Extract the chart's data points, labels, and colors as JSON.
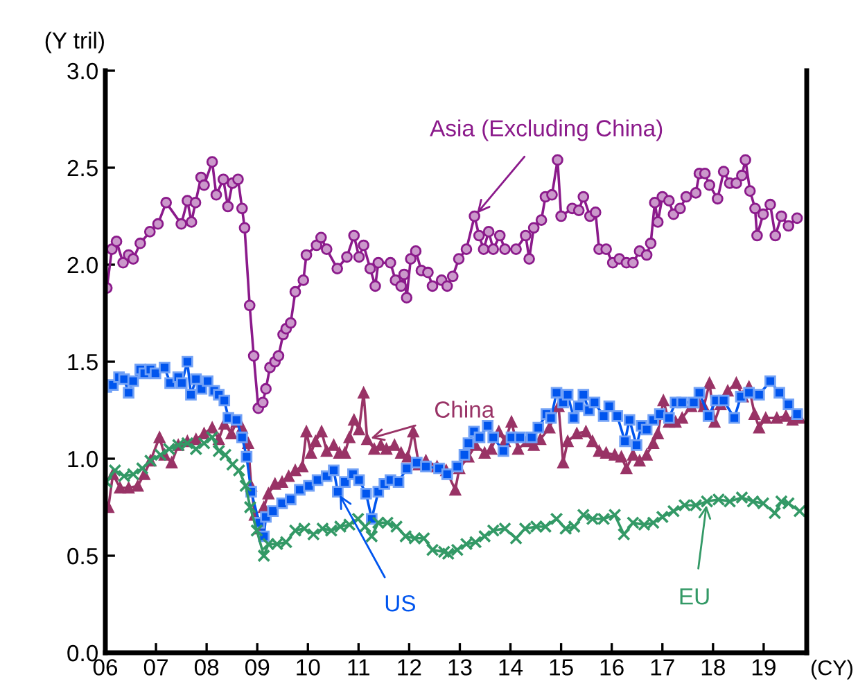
{
  "chart_data": {
    "type": "line",
    "ylabel": "(Y tril)",
    "xlabel": "(CY)",
    "xlim": [
      2006,
      2019.85
    ],
    "ylim": [
      0,
      3
    ],
    "xticks": [
      {
        "value": 2006,
        "label": "06"
      },
      {
        "value": 2007,
        "label": "07"
      },
      {
        "value": 2008,
        "label": "08"
      },
      {
        "value": 2009,
        "label": "09"
      },
      {
        "value": 2010,
        "label": "10"
      },
      {
        "value": 2011,
        "label": "11"
      },
      {
        "value": 2012,
        "label": "12"
      },
      {
        "value": 2013,
        "label": "13"
      },
      {
        "value": 2014,
        "label": "14"
      },
      {
        "value": 2015,
        "label": "15"
      },
      {
        "value": 2016,
        "label": "16"
      },
      {
        "value": 2017,
        "label": "17"
      },
      {
        "value": 2018,
        "label": "18"
      },
      {
        "value": 2019,
        "label": "19"
      }
    ],
    "yticks": [
      {
        "value": 0,
        "label": "0.0"
      },
      {
        "value": 0.5,
        "label": "0.5"
      },
      {
        "value": 1,
        "label": "1.0"
      },
      {
        "value": 1.5,
        "label": "1.5"
      },
      {
        "value": 2,
        "label": "2.0"
      },
      {
        "value": 2.5,
        "label": "2.5"
      },
      {
        "value": 3,
        "label": "3.0"
      }
    ],
    "grid": false,
    "legend": false,
    "series": [
      {
        "name": "Asia (Excluding China)",
        "color": "#8b1a8b",
        "marker": "circle",
        "x": [
          2006.03,
          2006.13,
          2006.22,
          2006.35,
          2006.46,
          2006.55,
          2006.69,
          2006.88,
          2007.04,
          2007.2,
          2007.5,
          2007.62,
          2007.7,
          2007.78,
          2007.89,
          2007.95,
          2008.11,
          2008.19,
          2008.33,
          2008.42,
          2008.51,
          2008.62,
          2008.7,
          2008.75,
          2008.85,
          2008.93,
          2009.02,
          2009.11,
          2009.17,
          2009.25,
          2009.35,
          2009.42,
          2009.51,
          2009.57,
          2009.66,
          2009.75,
          2009.91,
          2009.97,
          2010.17,
          2010.26,
          2010.37,
          2010.58,
          2010.77,
          2010.91,
          2011.01,
          2011.1,
          2011.23,
          2011.33,
          2011.39,
          2011.63,
          2011.73,
          2011.84,
          2011.9,
          2011.95,
          2012.03,
          2012.13,
          2012.24,
          2012.37,
          2012.46,
          2012.64,
          2012.75,
          2012.86,
          2012.98,
          2013.13,
          2013.29,
          2013.38,
          2013.47,
          2013.57,
          2013.66,
          2013.79,
          2013.89,
          2014.11,
          2014.3,
          2014.37,
          2014.46,
          2014.61,
          2014.69,
          2014.82,
          2014.93,
          2015.0,
          2015.22,
          2015.35,
          2015.44,
          2015.57,
          2015.68,
          2015.75,
          2015.89,
          2016.02,
          2016.15,
          2016.29,
          2016.42,
          2016.55,
          2016.69,
          2016.77,
          2016.85,
          2016.91,
          2017.0,
          2017.13,
          2017.22,
          2017.35,
          2017.47,
          2017.66,
          2017.73,
          2017.84,
          2017.93,
          2018.09,
          2018.21,
          2018.33,
          2018.46,
          2018.57,
          2018.64,
          2018.73,
          2018.83,
          2018.87,
          2018.99,
          2019.13,
          2019.23,
          2019.35,
          2019.49,
          2019.66
        ],
        "values": [
          1.88,
          2.08,
          2.12,
          2.01,
          2.05,
          2.03,
          2.11,
          2.17,
          2.21,
          2.32,
          2.21,
          2.33,
          2.22,
          2.32,
          2.45,
          2.41,
          2.53,
          2.36,
          2.44,
          2.3,
          2.42,
          2.44,
          2.29,
          2.19,
          1.79,
          1.53,
          1.26,
          1.29,
          1.36,
          1.47,
          1.5,
          1.53,
          1.64,
          1.67,
          1.7,
          1.86,
          1.92,
          2.05,
          2.1,
          2.14,
          2.08,
          1.98,
          2.04,
          2.15,
          2.04,
          2.1,
          1.98,
          1.89,
          2.01,
          2.01,
          1.92,
          1.89,
          1.95,
          1.83,
          2.03,
          2.07,
          1.97,
          1.96,
          1.89,
          1.92,
          1.89,
          1.94,
          2.03,
          2.08,
          2.25,
          2.15,
          2.08,
          2.17,
          2.08,
          2.15,
          2.08,
          2.08,
          2.15,
          2.03,
          2.19,
          2.23,
          2.35,
          2.36,
          2.54,
          2.25,
          2.29,
          2.28,
          2.35,
          2.25,
          2.27,
          2.08,
          2.08,
          2.01,
          2.03,
          2.01,
          2.01,
          2.07,
          2.05,
          2.11,
          2.32,
          2.22,
          2.35,
          2.33,
          2.26,
          2.29,
          2.35,
          2.37,
          2.47,
          2.47,
          2.41,
          2.34,
          2.48,
          2.42,
          2.42,
          2.46,
          2.54,
          2.38,
          2.29,
          2.15,
          2.26,
          2.31,
          2.15,
          2.25,
          2.2,
          2.24
        ]
      },
      {
        "name": "China",
        "color": "#993366",
        "marker": "triangle",
        "x": [
          2006.06,
          2006.15,
          2006.29,
          2006.46,
          2006.64,
          2006.77,
          2006.89,
          2007.07,
          2007.17,
          2007.31,
          2007.44,
          2007.62,
          2007.79,
          2007.95,
          2008.11,
          2008.24,
          2008.35,
          2008.49,
          2008.59,
          2008.7,
          2008.82,
          2008.88,
          2008.95,
          2009.06,
          2009.13,
          2009.22,
          2009.35,
          2009.49,
          2009.62,
          2009.75,
          2009.89,
          2009.97,
          2010.06,
          2010.15,
          2010.27,
          2010.37,
          2010.51,
          2010.62,
          2010.73,
          2010.82,
          2010.91,
          2011.01,
          2011.1,
          2011.17,
          2011.31,
          2011.44,
          2011.55,
          2011.71,
          2011.84,
          2011.97,
          2012.08,
          2012.19,
          2012.33,
          2012.55,
          2012.73,
          2012.91,
          2012.99,
          2013.17,
          2013.31,
          2013.49,
          2013.62,
          2013.77,
          2013.89,
          2014.02,
          2014.15,
          2014.33,
          2014.46,
          2014.59,
          2014.77,
          2014.95,
          2015.04,
          2015.13,
          2015.31,
          2015.49,
          2015.62,
          2015.75,
          2015.89,
          2016.06,
          2016.19,
          2016.29,
          2016.42,
          2016.55,
          2016.69,
          2016.82,
          2016.91,
          2017.02,
          2017.13,
          2017.26,
          2017.39,
          2017.57,
          2017.71,
          2017.82,
          2017.93,
          2018.03,
          2018.15,
          2018.29,
          2018.46,
          2018.59,
          2018.71,
          2018.82,
          2018.91,
          2019.04,
          2019.26,
          2019.44,
          2019.57,
          2019.71
        ],
        "values": [
          0.75,
          0.92,
          0.85,
          0.85,
          0.86,
          0.92,
          0.99,
          1.11,
          1.02,
          0.98,
          1.07,
          1.09,
          1.1,
          1.13,
          1.16,
          1.1,
          1.18,
          1.13,
          1.19,
          1.16,
          1.08,
          0.86,
          0.71,
          0.64,
          0.75,
          0.82,
          0.87,
          0.88,
          0.91,
          0.94,
          0.96,
          1.14,
          1.03,
          1.09,
          1.14,
          1.04,
          1.07,
          1.03,
          1.03,
          1.11,
          1.2,
          1.15,
          1.34,
          1.1,
          1.05,
          1.07,
          1.05,
          1.07,
          1.03,
          1.01,
          1.14,
          0.97,
          0.99,
          0.96,
          0.94,
          0.84,
          0.95,
          1.01,
          1.07,
          1.03,
          1.05,
          1.14,
          1.09,
          1.19,
          1.05,
          1.09,
          1.07,
          1.1,
          1.16,
          1.27,
          0.98,
          1.09,
          1.13,
          1.14,
          1.09,
          1.04,
          1.03,
          1.02,
          1.01,
          0.95,
          1.02,
          0.99,
          1.02,
          1.08,
          1.13,
          1.3,
          1.19,
          1.19,
          1.21,
          1.27,
          1.29,
          1.27,
          1.39,
          1.19,
          1.28,
          1.35,
          1.39,
          1.32,
          1.37,
          1.23,
          1.16,
          1.21,
          1.21,
          1.22,
          1.2,
          1.21
        ]
      },
      {
        "name": "US",
        "color": "#0055ee",
        "marker": "square",
        "x": [
          2006.02,
          2006.15,
          2006.27,
          2006.37,
          2006.46,
          2006.55,
          2006.69,
          2006.77,
          2006.89,
          2006.99,
          2007.17,
          2007.28,
          2007.44,
          2007.51,
          2007.62,
          2007.69,
          2007.79,
          2007.9,
          2008.02,
          2008.15,
          2008.24,
          2008.35,
          2008.43,
          2008.59,
          2008.7,
          2008.79,
          2008.88,
          2009.04,
          2009.13,
          2009.17,
          2009.31,
          2009.49,
          2009.66,
          2009.84,
          2010.02,
          2010.19,
          2010.37,
          2010.51,
          2010.59,
          2010.73,
          2010.89,
          2011.01,
          2011.15,
          2011.26,
          2011.39,
          2011.51,
          2011.63,
          2011.79,
          2011.95,
          2012.15,
          2012.33,
          2012.59,
          2012.75,
          2012.95,
          2013.09,
          2013.17,
          2013.28,
          2013.39,
          2013.55,
          2013.66,
          2013.86,
          2014.02,
          2014.19,
          2014.42,
          2014.55,
          2014.71,
          2014.8,
          2014.91,
          2015.04,
          2015.13,
          2015.25,
          2015.35,
          2015.44,
          2015.55,
          2015.66,
          2015.84,
          2015.95,
          2016.11,
          2016.26,
          2016.35,
          2016.49,
          2016.59,
          2016.69,
          2016.82,
          2016.95,
          2017.13,
          2017.26,
          2017.39,
          2017.62,
          2017.73,
          2017.91,
          2018.06,
          2018.21,
          2018.42,
          2018.55,
          2018.71,
          2018.91,
          2019.13,
          2019.31,
          2019.49,
          2019.66
        ],
        "values": [
          1.37,
          1.38,
          1.42,
          1.41,
          1.34,
          1.4,
          1.46,
          1.44,
          1.46,
          1.44,
          1.47,
          1.39,
          1.42,
          1.39,
          1.5,
          1.33,
          1.41,
          1.36,
          1.4,
          1.35,
          1.33,
          1.3,
          1.21,
          1.2,
          1.11,
          1.01,
          0.83,
          0.67,
          0.6,
          0.7,
          0.73,
          0.77,
          0.79,
          0.84,
          0.86,
          0.89,
          0.91,
          0.94,
          0.83,
          0.88,
          0.92,
          0.89,
          0.82,
          0.69,
          0.83,
          0.87,
          0.89,
          0.88,
          0.95,
          0.98,
          0.96,
          0.95,
          0.92,
          0.96,
          1.02,
          1.08,
          1.14,
          1.11,
          1.17,
          1.11,
          1.04,
          1.11,
          1.11,
          1.11,
          1.16,
          1.23,
          1.21,
          1.34,
          1.29,
          1.33,
          1.21,
          1.27,
          1.33,
          1.25,
          1.29,
          1.22,
          1.27,
          1.22,
          1.09,
          1.2,
          1.07,
          1.17,
          1.15,
          1.2,
          1.23,
          1.21,
          1.29,
          1.29,
          1.29,
          1.34,
          1.22,
          1.3,
          1.3,
          1.21,
          1.32,
          1.34,
          1.33,
          1.4,
          1.34,
          1.28,
          1.23
        ]
      },
      {
        "name": "EU",
        "color": "#339966",
        "marker": "cross",
        "x": [
          2006.02,
          2006.19,
          2006.37,
          2006.55,
          2006.73,
          2006.89,
          2007.09,
          2007.26,
          2007.44,
          2007.62,
          2007.79,
          2007.95,
          2008.11,
          2008.24,
          2008.37,
          2008.51,
          2008.64,
          2008.77,
          2008.86,
          2008.99,
          2009.13,
          2009.22,
          2009.39,
          2009.57,
          2009.75,
          2009.93,
          2010.11,
          2010.29,
          2010.46,
          2010.64,
          2010.82,
          2010.99,
          2011.13,
          2011.26,
          2011.39,
          2011.57,
          2011.75,
          2011.93,
          2012.11,
          2012.29,
          2012.46,
          2012.69,
          2012.77,
          2012.95,
          2013.13,
          2013.31,
          2013.49,
          2013.66,
          2013.89,
          2014.11,
          2014.29,
          2014.51,
          2014.69,
          2014.91,
          2015.09,
          2015.26,
          2015.44,
          2015.62,
          2015.84,
          2016.06,
          2016.24,
          2016.42,
          2016.64,
          2016.82,
          2017.0,
          2017.22,
          2017.44,
          2017.66,
          2017.88,
          2018.11,
          2018.33,
          2018.57,
          2018.79,
          2018.99,
          2019.22,
          2019.35,
          2019.49,
          2019.71
        ],
        "values": [
          0.88,
          0.94,
          0.91,
          0.92,
          0.95,
          0.99,
          1.02,
          1.05,
          1.07,
          1.08,
          1.05,
          1.08,
          1.11,
          1.04,
          1.02,
          0.97,
          0.94,
          0.86,
          0.75,
          0.63,
          0.5,
          0.56,
          0.56,
          0.57,
          0.63,
          0.64,
          0.61,
          0.64,
          0.63,
          0.65,
          0.66,
          0.69,
          0.65,
          0.6,
          0.67,
          0.67,
          0.65,
          0.6,
          0.59,
          0.59,
          0.53,
          0.52,
          0.51,
          0.53,
          0.56,
          0.57,
          0.6,
          0.63,
          0.64,
          0.59,
          0.64,
          0.65,
          0.65,
          0.69,
          0.64,
          0.65,
          0.71,
          0.69,
          0.69,
          0.71,
          0.61,
          0.67,
          0.66,
          0.67,
          0.7,
          0.73,
          0.76,
          0.76,
          0.78,
          0.79,
          0.78,
          0.8,
          0.78,
          0.77,
          0.72,
          0.78,
          0.77,
          0.73
        ]
      }
    ]
  }
}
